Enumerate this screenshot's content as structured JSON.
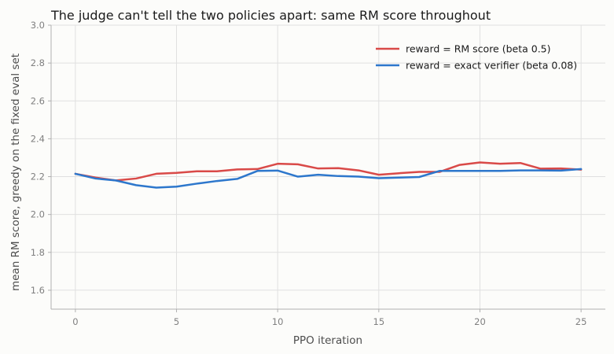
{
  "chart_data": {
    "type": "line",
    "title": "The judge can't tell the two policies apart: same RM score throughout",
    "xlabel": "PPO iteration",
    "ylabel": "mean RM score, greedy on the fixed eval set",
    "xlim": [
      -1.2,
      26.2
    ],
    "ylim": [
      1.5,
      3.0
    ],
    "xticks": [
      0,
      5,
      10,
      15,
      20,
      25
    ],
    "yticks": [
      1.6,
      1.8,
      2.0,
      2.2,
      2.4,
      2.6,
      2.8,
      3.0
    ],
    "grid": true,
    "legend_position": "top-right",
    "x": [
      0,
      1,
      2,
      3,
      4,
      5,
      6,
      7,
      8,
      9,
      10,
      11,
      12,
      13,
      14,
      15,
      16,
      17,
      18,
      19,
      20,
      21,
      22,
      23,
      24,
      25
    ],
    "series": [
      {
        "name": "reward = RM score (beta 0.5)",
        "color": "#d94a48",
        "values": [
          2.215,
          2.195,
          2.18,
          2.19,
          2.215,
          2.22,
          2.228,
          2.228,
          2.238,
          2.24,
          2.268,
          2.265,
          2.243,
          2.245,
          2.233,
          2.21,
          2.218,
          2.225,
          2.225,
          2.262,
          2.275,
          2.268,
          2.272,
          2.242,
          2.243,
          2.237
        ]
      },
      {
        "name": "reward = exact verifier (beta 0.08)",
        "color": "#2d77cc",
        "values": [
          2.215,
          2.19,
          2.18,
          2.155,
          2.142,
          2.147,
          2.163,
          2.177,
          2.188,
          2.23,
          2.232,
          2.2,
          2.21,
          2.203,
          2.2,
          2.192,
          2.195,
          2.198,
          2.23,
          2.23,
          2.23,
          2.23,
          2.233,
          2.233,
          2.232,
          2.24
        ]
      }
    ]
  }
}
